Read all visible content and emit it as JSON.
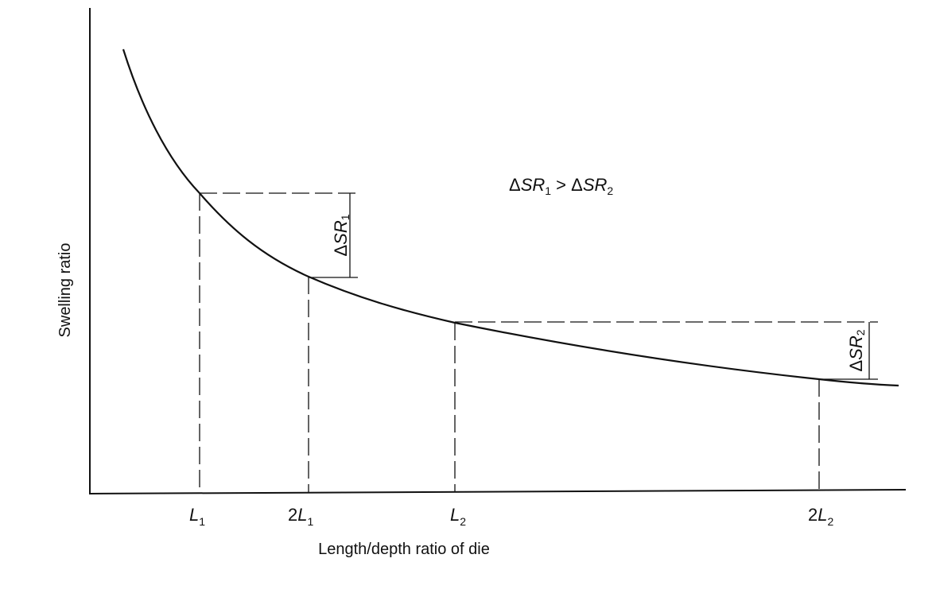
{
  "y_axis_label": "Swelling ratio",
  "x_axis_label": "Length/depth ratio of die",
  "x_ticks": [
    {
      "coef": "",
      "var": "L",
      "sub": "1"
    },
    {
      "coef": "2",
      "var": "L",
      "sub": "1"
    },
    {
      "coef": "",
      "var": "L",
      "sub": "2"
    },
    {
      "coef": "2",
      "var": "L",
      "sub": "2"
    }
  ],
  "delta1": {
    "delta": "Δ",
    "var": "SR",
    "sub": "1"
  },
  "delta2": {
    "delta": "Δ",
    "var": "SR",
    "sub": "2"
  },
  "relation": {
    "left_delta": "Δ",
    "left_var": "SR",
    "left_sub": "1",
    "op": " > ",
    "right_delta": "Δ",
    "right_var": "SR",
    "right_sub": "2"
  }
}
